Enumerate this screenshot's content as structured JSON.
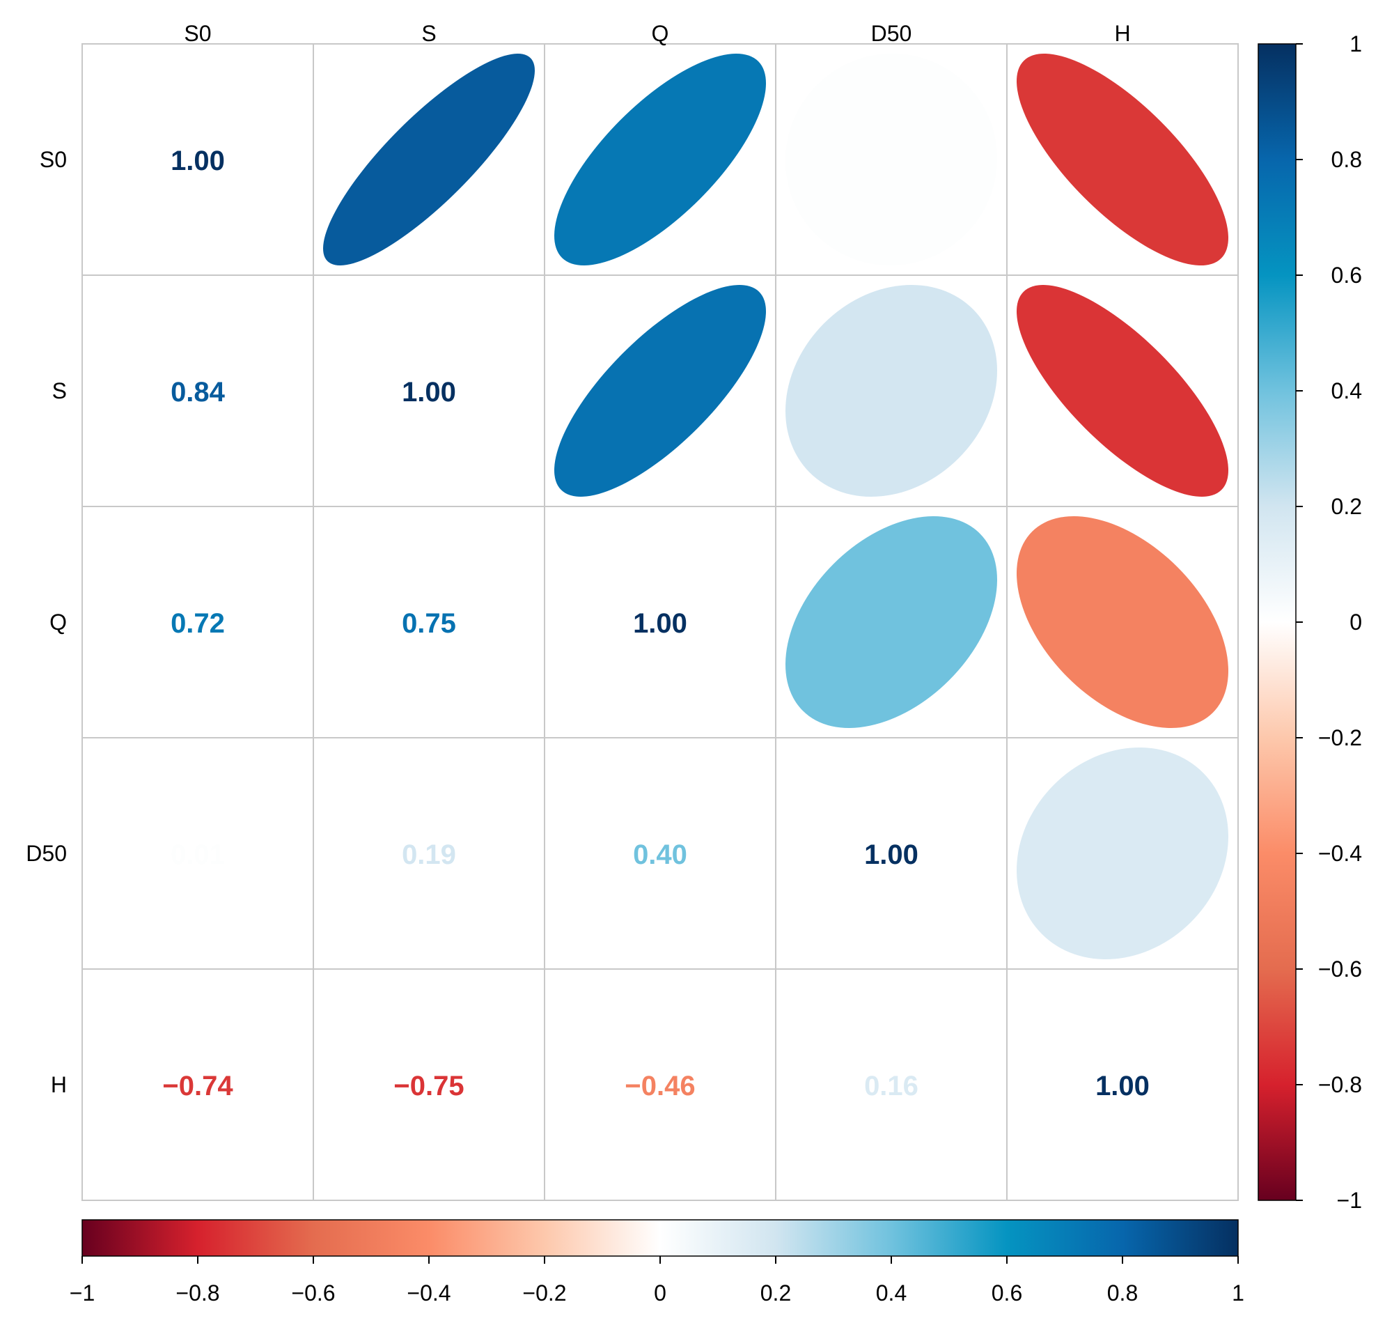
{
  "chart_data": {
    "type": "heatmap",
    "title": "",
    "variables": [
      "S0",
      "S",
      "Q",
      "D50",
      "H"
    ],
    "matrix": [
      [
        1.0,
        0.84,
        0.72,
        0.01,
        -0.74
      ],
      [
        0.84,
        1.0,
        0.75,
        0.19,
        -0.75
      ],
      [
        0.72,
        0.75,
        1.0,
        0.4,
        -0.46
      ],
      [
        0.01,
        0.19,
        0.4,
        1.0,
        0.16
      ],
      [
        -0.74,
        -0.75,
        -0.46,
        0.16,
        1.0
      ]
    ],
    "value_labels": [
      [
        "1.00",
        "",
        "",
        "",
        ""
      ],
      [
        "0.84",
        "1.00",
        "",
        "",
        ""
      ],
      [
        "0.72",
        "0.75",
        "1.00",
        "",
        ""
      ],
      [
        "0.01",
        "0.19",
        "0.40",
        "1.00",
        ""
      ],
      [
        "−0.74",
        "−0.75",
        "−0.46",
        "0.16",
        "1.00"
      ]
    ],
    "lower_triangle": "number",
    "upper_triangle": "ellipse",
    "value_range": [
      -1,
      1
    ],
    "palette": {
      "stops": [
        -1,
        -0.8,
        -0.6,
        -0.4,
        -0.2,
        0,
        0.2,
        0.4,
        0.6,
        0.8,
        1
      ],
      "colors": [
        "#67001F",
        "#D6212D",
        "#E46C4F",
        "#FB8C68",
        "#FDC8AC",
        "#FFFFFF",
        "#D1E5F0",
        "#70C2DE",
        "#0594C1",
        "#0766AC",
        "#053061"
      ]
    },
    "diagonal_color": "#053061",
    "grid_color": "#C8C8C8",
    "colorbars": [
      {
        "orientation": "vertical",
        "position": "right",
        "tick_values": [
          1,
          0.8,
          0.6,
          0.4,
          0.2,
          0,
          -0.2,
          -0.4,
          -0.6,
          -0.8,
          -1
        ],
        "tick_labels": [
          "1",
          "0.8",
          "0.6",
          "0.4",
          "0.2",
          "0",
          "−0.2",
          "−0.4",
          "−0.6",
          "−0.8",
          "−1"
        ]
      },
      {
        "orientation": "horizontal",
        "position": "bottom",
        "tick_values": [
          -1,
          -0.8,
          -0.6,
          -0.4,
          -0.2,
          0,
          0.2,
          0.4,
          0.6,
          0.8,
          1
        ],
        "tick_labels": [
          "−1",
          "−0.8",
          "−0.6",
          "−0.4",
          "−0.2",
          "0",
          "0.2",
          "0.4",
          "0.6",
          "0.8",
          "1"
        ]
      }
    ]
  }
}
